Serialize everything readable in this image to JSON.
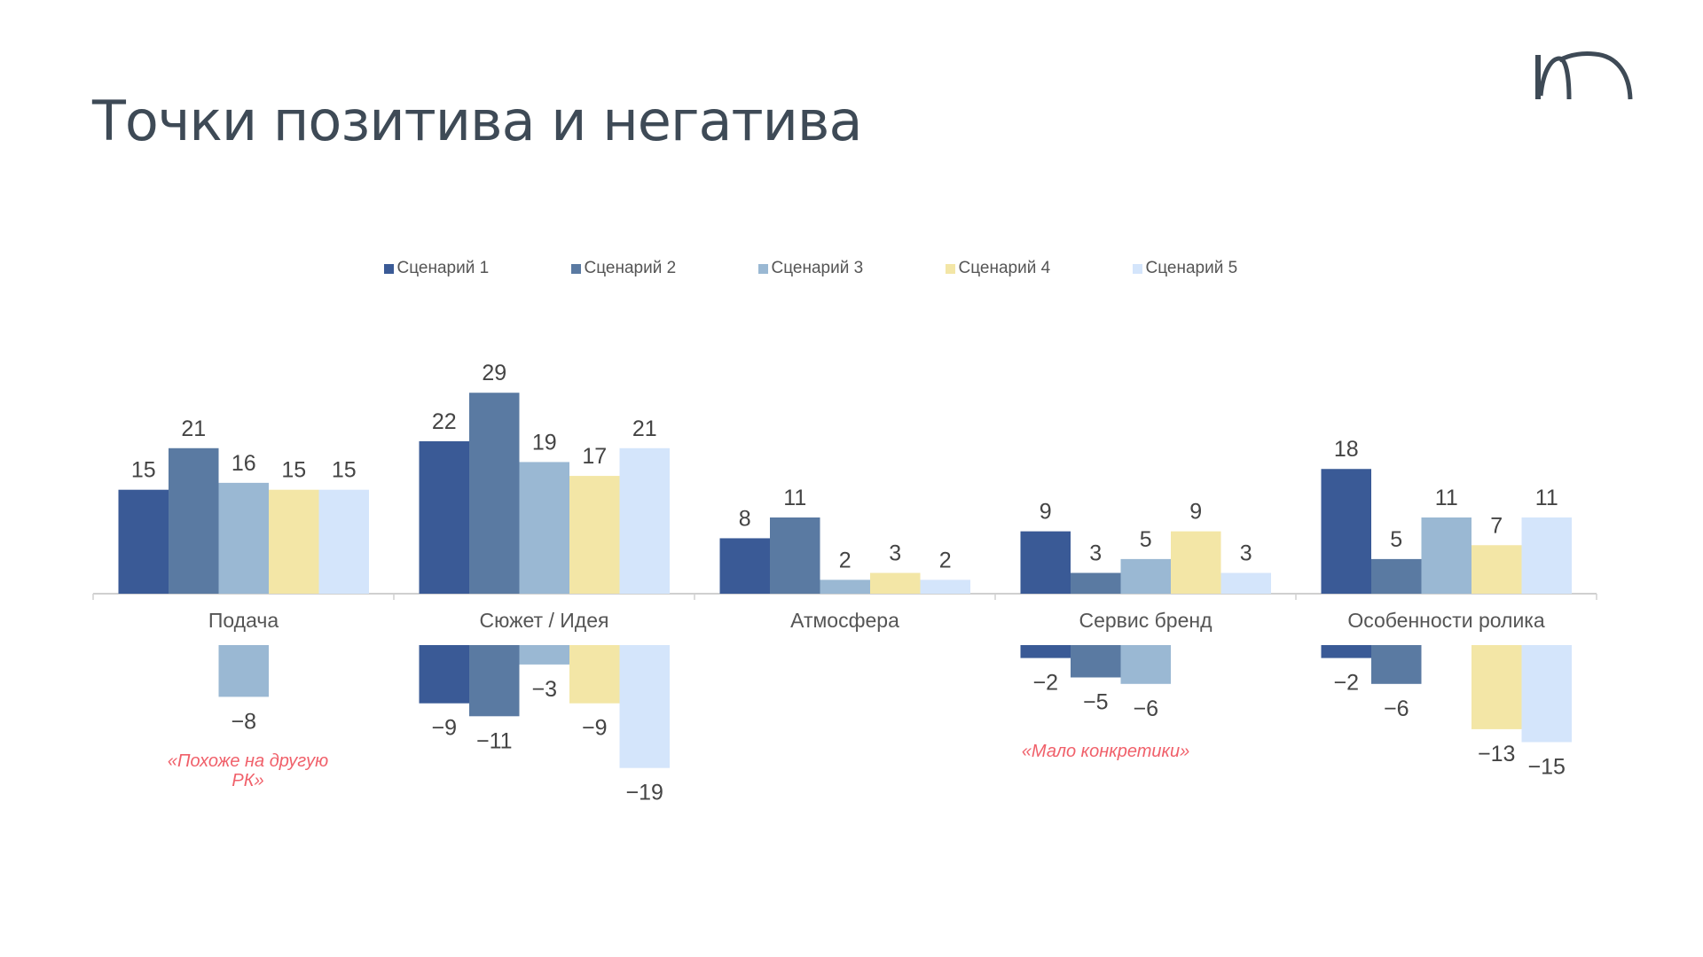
{
  "title": "Точки позитива и негатива",
  "logo": "m-arch-logo",
  "chart_data": {
    "type": "bar",
    "title": "Точки позитива и негатива",
    "categories": [
      "Подача",
      "Сюжет / Идея",
      "Атмосфера",
      "Сервис бренд",
      "Особенности ролика"
    ],
    "legend_position": "top-center",
    "grid": false,
    "series": [
      {
        "name": "Сценарий 1",
        "color": "#3a5a96",
        "positive": [
          15,
          22,
          8,
          9,
          18
        ],
        "negative": [
          null,
          -9,
          null,
          -2,
          -2
        ]
      },
      {
        "name": "Сценарий 2",
        "color": "#5a7aa2",
        "positive": [
          21,
          29,
          11,
          3,
          5
        ],
        "negative": [
          null,
          -11,
          null,
          -5,
          -6
        ]
      },
      {
        "name": "Сценарий 3",
        "color": "#9ab8d3",
        "positive": [
          16,
          19,
          2,
          5,
          11
        ],
        "negative": [
          -8,
          -3,
          null,
          -6,
          null
        ]
      },
      {
        "name": "Сценарий 4",
        "color": "#f3e6a6",
        "positive": [
          15,
          17,
          3,
          9,
          7
        ],
        "negative": [
          null,
          -9,
          null,
          null,
          -13
        ]
      },
      {
        "name": "Сценарий 5",
        "color": "#d4e5fb",
        "positive": [
          15,
          21,
          2,
          3,
          11
        ],
        "negative": [
          null,
          -19,
          null,
          null,
          -15
        ]
      }
    ],
    "annotations": [
      {
        "category": "Подача",
        "text": "«Похоже на другую РК»",
        "lines": [
          "«Похоже на другую",
          "РК»"
        ]
      },
      {
        "category": "Сервис бренд",
        "text": "«Мало конкретики»",
        "lines": [
          "«Мало конкретики»"
        ]
      }
    ],
    "annotation_color": "#f0606a"
  }
}
